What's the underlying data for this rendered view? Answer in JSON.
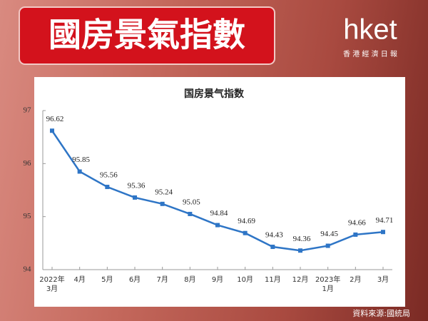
{
  "header": {
    "title": "國房景氣指數",
    "logo": "hket",
    "logo_sub": "香 港 經 濟 日 報"
  },
  "source": "資料來源:國統局",
  "chart_data": {
    "type": "line",
    "title": "国房景气指数",
    "categories": [
      "2022年\n3月",
      "4月",
      "5月",
      "6月",
      "7月",
      "8月",
      "9月",
      "10月",
      "11月",
      "12月",
      "2023年\n1月",
      "2月",
      "3月"
    ],
    "values": [
      96.62,
      95.85,
      95.56,
      95.36,
      95.24,
      95.05,
      94.84,
      94.69,
      94.43,
      94.36,
      94.45,
      94.66,
      94.71
    ],
    "color": "#2e75c6",
    "ylim": [
      94,
      97
    ],
    "yticks": [
      94,
      95,
      96,
      97
    ]
  }
}
